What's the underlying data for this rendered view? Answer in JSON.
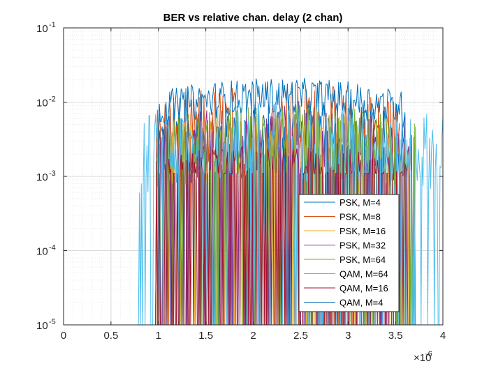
{
  "chart_data": {
    "type": "line",
    "title": "BER vs relative chan. delay (2 chan)",
    "xlabel": "",
    "ylabel": "",
    "x_exponent_label": "×10",
    "x_exponent_value": "-6",
    "xlim": [
      0,
      4e-06
    ],
    "ylim": [
      1e-05,
      0.1
    ],
    "yscale": "log",
    "grid": "on (major and minor)",
    "legend_location": "bottom-right inside axes",
    "x_ticks": [
      0,
      0.5,
      1,
      1.5,
      2,
      2.5,
      3,
      3.5,
      4
    ],
    "x_tick_labels": [
      "0",
      "0.5",
      "1",
      "1.5",
      "2",
      "2.5",
      "3",
      "3.5",
      "4"
    ],
    "y_ticks": [
      1e-05,
      0.0001,
      0.001,
      0.01,
      0.1
    ],
    "y_tick_labels": [
      {
        "base": "10",
        "exp": "-5"
      },
      {
        "base": "10",
        "exp": "-4"
      },
      {
        "base": "10",
        "exp": "-3"
      },
      {
        "base": "10",
        "exp": "-2"
      },
      {
        "base": "10",
        "exp": "-1"
      }
    ],
    "series": [
      {
        "name": "PSK, M=4",
        "color": "#0072BD",
        "x_range": [
          9.8e-07,
          3.6e-06
        ],
        "typical_ber": 0.0035
      },
      {
        "name": "PSK, M=8",
        "color": "#D95319",
        "x_range": [
          9.8e-07,
          3.6e-06
        ],
        "typical_ber": 0.005
      },
      {
        "name": "PSK, M=16",
        "color": "#EDB120",
        "x_range": [
          9.8e-07,
          3.7e-06
        ],
        "typical_ber": 0.0025
      },
      {
        "name": "PSK, M=32",
        "color": "#7E2F8E",
        "x_range": [
          9.8e-07,
          3.7e-06
        ],
        "typical_ber": 0.003
      },
      {
        "name": "PSK, M=64",
        "color": "#77AC30",
        "x_range": [
          9.8e-07,
          3.7e-06
        ],
        "typical_ber": 0.003
      },
      {
        "name": "QAM, M=64",
        "color": "#4DBEEE",
        "x_range": [
          8e-07,
          4e-06
        ],
        "typical_ber": 0.003
      },
      {
        "name": "QAM, M=16",
        "color": "#A2142F",
        "x_range": [
          9.8e-07,
          3.65e-06
        ],
        "typical_ber": 0.0015
      },
      {
        "name": "QAM, M=4",
        "color": "#0072BD",
        "x_range": [
          1e-06,
          3.6e-06
        ],
        "typical_ber": 0.012
      }
    ]
  }
}
